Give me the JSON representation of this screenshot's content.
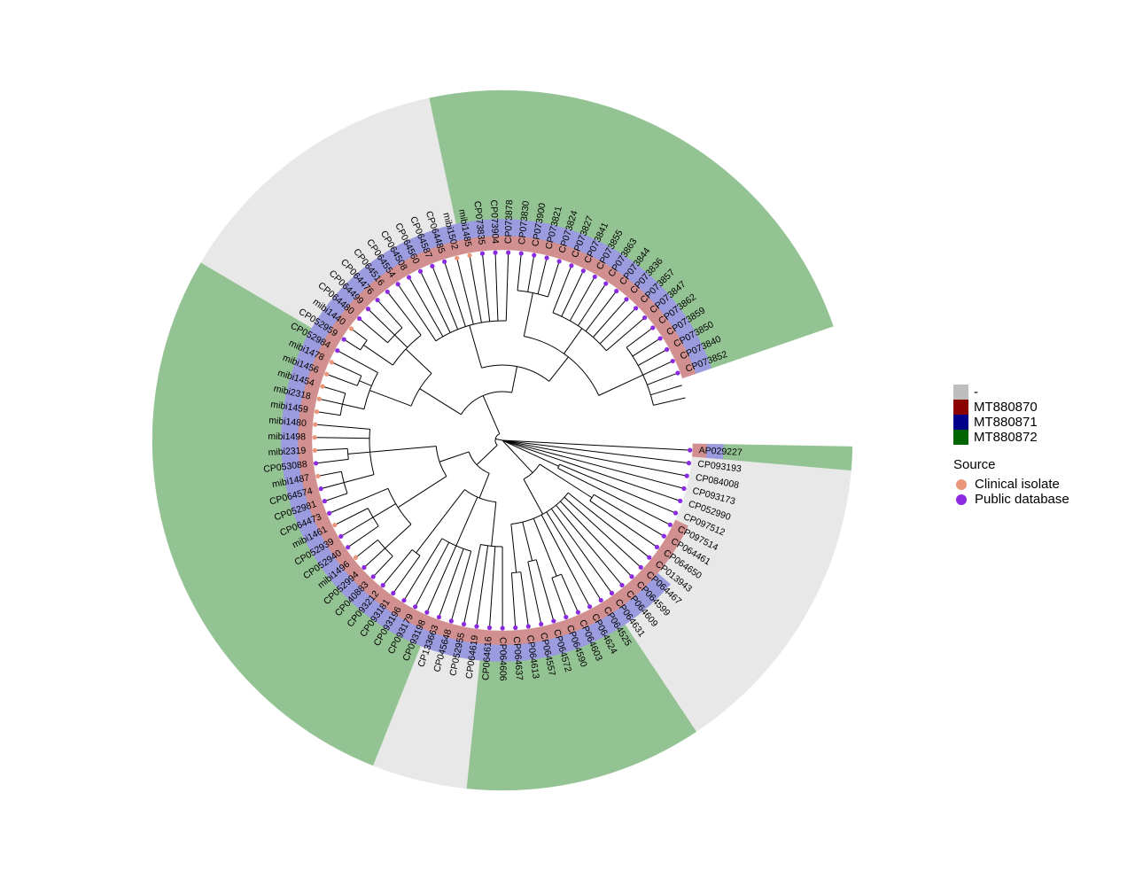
{
  "colors": {
    "MT880870": "#8B0000",
    "MT880871": "#00008B",
    "MT880872": "#006400",
    "missing": "#BEBEBE",
    "clinical": "#E9967A",
    "public": "#8A2BE2",
    "branch": "#000000"
  },
  "legend_segments": {
    "items": [
      {
        "label": "-",
        "color_key": "missing"
      },
      {
        "label": "MT880870",
        "color_key": "MT880870"
      },
      {
        "label": "MT880871",
        "color_key": "MT880871"
      },
      {
        "label": "MT880872",
        "color_key": "MT880872"
      }
    ]
  },
  "legend_source": {
    "title": "Source",
    "items": [
      {
        "label": "Clinical isolate",
        "color_key": "clinical"
      },
      {
        "label": "Public database",
        "color_key": "public"
      }
    ]
  },
  "tips": [
    {
      "label": "AP029227",
      "source": "public"
    },
    {
      "label": "CP093193",
      "source": "public"
    },
    {
      "label": "CP084008",
      "source": "public"
    },
    {
      "label": "CP093173",
      "source": "public"
    },
    {
      "label": "CP052990",
      "source": "public"
    },
    {
      "label": "CP097512",
      "source": "public"
    },
    {
      "label": "CP097514",
      "source": "public"
    },
    {
      "label": "CP064461",
      "source": "public"
    },
    {
      "label": "CP064650",
      "source": "public"
    },
    {
      "label": "CP013943",
      "source": "public"
    },
    {
      "label": "CP064467",
      "source": "public"
    },
    {
      "label": "CP064599",
      "source": "public"
    },
    {
      "label": "CP064609",
      "source": "public"
    },
    {
      "label": "CP064631",
      "source": "public"
    },
    {
      "label": "CP064525",
      "source": "public"
    },
    {
      "label": "CP064624",
      "source": "public"
    },
    {
      "label": "CP064603",
      "source": "public"
    },
    {
      "label": "CP064590",
      "source": "public"
    },
    {
      "label": "CP064572",
      "source": "public"
    },
    {
      "label": "CP064557",
      "source": "public"
    },
    {
      "label": "CP064613",
      "source": "public"
    },
    {
      "label": "CP064637",
      "source": "public"
    },
    {
      "label": "CP064606",
      "source": "public"
    },
    {
      "label": "CP064616",
      "source": "public"
    },
    {
      "label": "CP064619",
      "source": "public"
    },
    {
      "label": "CP052955",
      "source": "public"
    },
    {
      "label": "CP045648",
      "source": "public"
    },
    {
      "label": "CP133663",
      "source": "public"
    },
    {
      "label": "CP093198",
      "source": "public"
    },
    {
      "label": "CP093179",
      "source": "public"
    },
    {
      "label": "CP093196",
      "source": "public"
    },
    {
      "label": "CP093181",
      "source": "public"
    },
    {
      "label": "CP093212",
      "source": "public"
    },
    {
      "label": "CP040883",
      "source": "public"
    },
    {
      "label": "CP052994",
      "source": "public"
    },
    {
      "label": "mibi1496",
      "source": "clinical"
    },
    {
      "label": "CP052940",
      "source": "public"
    },
    {
      "label": "CP052939",
      "source": "public"
    },
    {
      "label": "mibi1461",
      "source": "clinical"
    },
    {
      "label": "CP064473",
      "source": "public"
    },
    {
      "label": "CP052981",
      "source": "public"
    },
    {
      "label": "CP064574",
      "source": "public"
    },
    {
      "label": "mibi1487",
      "source": "clinical"
    },
    {
      "label": "CP053088",
      "source": "public"
    },
    {
      "label": "mibi2319",
      "source": "clinical"
    },
    {
      "label": "mibi1498",
      "source": "clinical"
    },
    {
      "label": "mibi1480",
      "source": "clinical"
    },
    {
      "label": "mibi1459",
      "source": "clinical"
    },
    {
      "label": "mibi2318",
      "source": "clinical"
    },
    {
      "label": "mibi1454",
      "source": "clinical"
    },
    {
      "label": "mibi1456",
      "source": "clinical"
    },
    {
      "label": "mibi1478",
      "source": "clinical"
    },
    {
      "label": "CP052984",
      "source": "public"
    },
    {
      "label": "CP052959",
      "source": "public"
    },
    {
      "label": "mibi1440",
      "source": "clinical"
    },
    {
      "label": "CP064480",
      "source": "public"
    },
    {
      "label": "CP064499",
      "source": "public"
    },
    {
      "label": "CP064476",
      "source": "public"
    },
    {
      "label": "CP064516",
      "source": "public"
    },
    {
      "label": "CP064554",
      "source": "public"
    },
    {
      "label": "CP064508",
      "source": "public"
    },
    {
      "label": "CP064560",
      "source": "public"
    },
    {
      "label": "CP064587",
      "source": "public"
    },
    {
      "label": "CP064485",
      "source": "public"
    },
    {
      "label": "mibi1502",
      "source": "clinical"
    },
    {
      "label": "mibi1485",
      "source": "clinical"
    },
    {
      "label": "CP073835",
      "source": "public"
    },
    {
      "label": "CP073904",
      "source": "public"
    },
    {
      "label": "CP073878",
      "source": "public"
    },
    {
      "label": "CP073830",
      "source": "public"
    },
    {
      "label": "CP073900",
      "source": "public"
    },
    {
      "label": "CP073821",
      "source": "public"
    },
    {
      "label": "CP073824",
      "source": "public"
    },
    {
      "label": "CP073827",
      "source": "public"
    },
    {
      "label": "CP073841",
      "source": "public"
    },
    {
      "label": "CP073855",
      "source": "public"
    },
    {
      "label": "CP073863",
      "source": "public"
    },
    {
      "label": "CP073844",
      "source": "public"
    },
    {
      "label": "CP073836",
      "source": "public"
    },
    {
      "label": "CP073857",
      "source": "public"
    },
    {
      "label": "CP073847",
      "source": "public"
    },
    {
      "label": "CP073862",
      "source": "public"
    },
    {
      "label": "CP073859",
      "source": "public"
    },
    {
      "label": "CP073850",
      "source": "public"
    },
    {
      "label": "CP073840",
      "source": "public"
    },
    {
      "label": "CP073852",
      "source": "public"
    }
  ],
  "heatmap_rings": {
    "MT880870": {
      "missing_tips": [
        1,
        2,
        3,
        4,
        5
      ]
    },
    "MT880871": {
      "missing_tips": [
        1,
        2,
        3,
        4,
        5,
        6,
        7,
        8,
        9
      ]
    },
    "MT880872": {
      "missing_tips": [
        1,
        2,
        3,
        4,
        5,
        6,
        7,
        8,
        9,
        10,
        11,
        12,
        13,
        24,
        25,
        26,
        27,
        53,
        54,
        55,
        56,
        57,
        58,
        59,
        60,
        61,
        62,
        63,
        64
      ]
    }
  }
}
